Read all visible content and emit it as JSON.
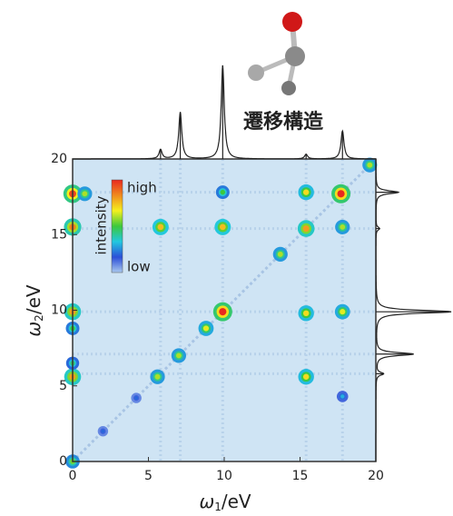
{
  "chart_data": {
    "type": "spectrum2d",
    "annotation": "遷移構造",
    "x_label": {
      "symbol": "ω",
      "subscript": "1",
      "unit": "/eV"
    },
    "y_label": {
      "symbol": "ω",
      "subscript": "2",
      "unit": "/eV"
    },
    "xlim": [
      0,
      20
    ],
    "ylim": [
      0,
      20
    ],
    "xticks": [
      0,
      5,
      10,
      15,
      20
    ],
    "yticks": [
      0,
      5,
      10,
      15,
      20
    ],
    "background": "#cfe4f4",
    "colorbar": {
      "title": "intensity",
      "high": "high",
      "low": "low",
      "colors": [
        "#a9c8ee",
        "#2b4fd8",
        "#22c8e0",
        "#3cc83c",
        "#f4f01e",
        "#f08a1e",
        "#e8281e"
      ]
    },
    "spectrum": {
      "color": "#222222",
      "x": [
        5.8,
        7.1,
        9.9,
        15.4,
        17.8
      ],
      "values": [
        0.1,
        0.5,
        1.0,
        0.05,
        0.3
      ]
    },
    "spots": {
      "x": [
        0,
        2,
        4.2,
        5.6,
        7,
        8.8,
        9.9,
        13.7,
        15.4,
        17.7,
        19.6,
        0,
        0,
        0,
        0,
        0,
        0,
        5.8,
        9.9,
        15.4,
        17.8,
        15.4,
        17.8,
        17.8,
        0.8,
        15.4,
        9.9
      ],
      "y": [
        0,
        2,
        4.2,
        5.6,
        7,
        8.8,
        9.9,
        13.7,
        15.4,
        17.7,
        19.6,
        5.6,
        9.9,
        15.5,
        17.7,
        8.8,
        6.5,
        15.5,
        15.5,
        9.8,
        9.9,
        5.6,
        4.3,
        15.5,
        17.7,
        17.8,
        17.8
      ],
      "intensity": [
        0.55,
        0.2,
        0.2,
        0.6,
        0.6,
        0.65,
        1.0,
        0.6,
        0.8,
        1.0,
        0.6,
        0.8,
        0.8,
        0.85,
        0.95,
        0.5,
        0.45,
        0.75,
        0.75,
        0.7,
        0.65,
        0.7,
        0.3,
        0.6,
        0.6,
        0.7,
        0.5
      ]
    }
  }
}
